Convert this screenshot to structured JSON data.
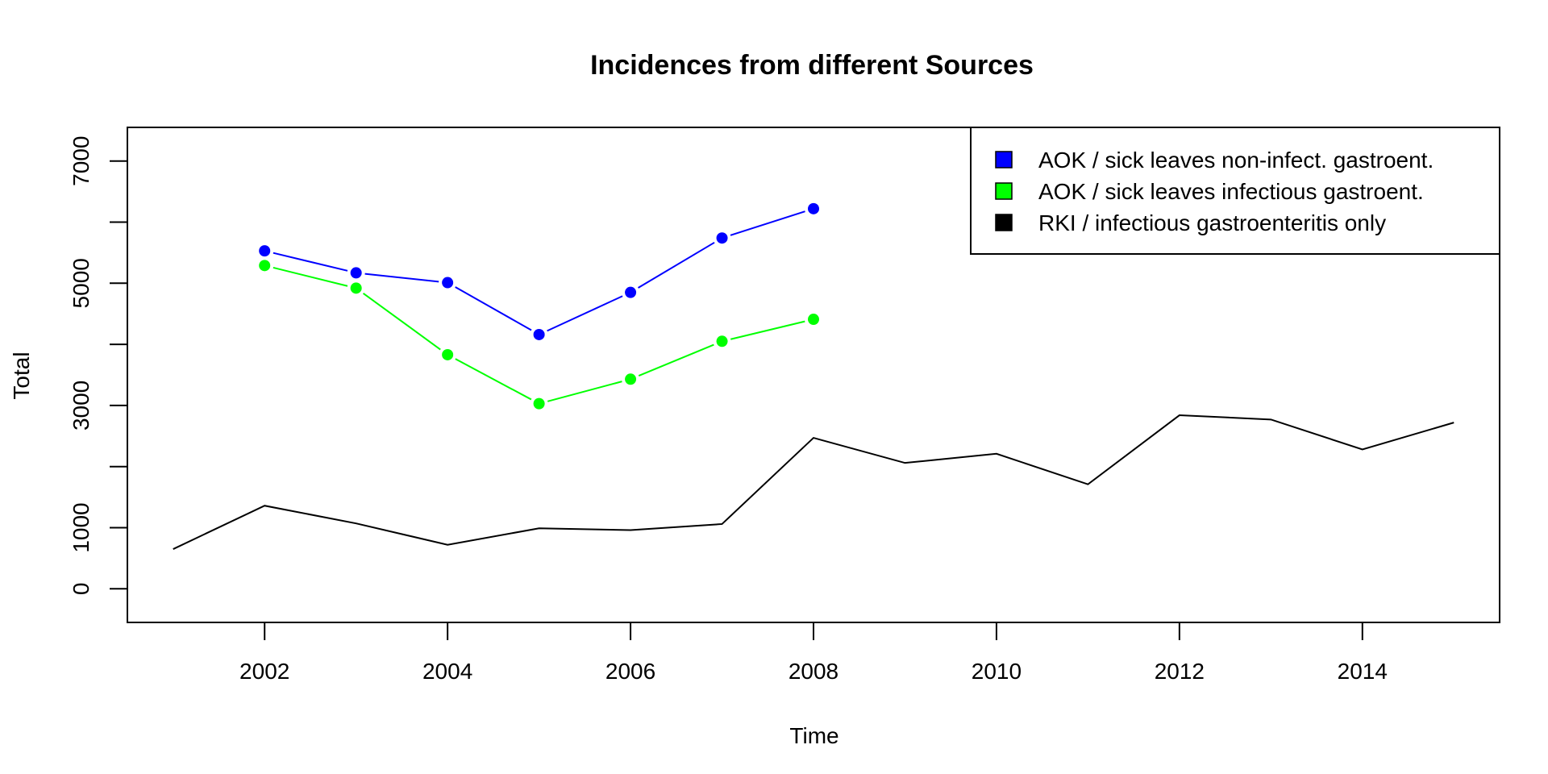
{
  "chart_data": {
    "type": "line",
    "title": "Incidences from different Sources",
    "xlabel": "Time",
    "ylabel": "Total",
    "xlim": [
      2000.5,
      2015.5
    ],
    "ylim": [
      -550,
      7550
    ],
    "x_ticks": [
      2002,
      2004,
      2006,
      2008,
      2010,
      2012,
      2014
    ],
    "x_tick_labels": [
      "2002",
      "2004",
      "2006",
      "2008",
      "2010",
      "2012",
      "2014"
    ],
    "y_ticks": [
      0,
      1000,
      2000,
      3000,
      4000,
      5000,
      6000,
      7000
    ],
    "y_tick_labels": [
      "0",
      "1000",
      "",
      "3000",
      "",
      "5000",
      "",
      "7000"
    ],
    "grid": false,
    "legend_position": "top-right",
    "series": [
      {
        "name": "AOK / sick leaves non-infect. gastroent.",
        "color": "#0000ff",
        "markers": true,
        "x": [
          2002,
          2003,
          2004,
          2005,
          2006,
          2007,
          2008
        ],
        "values": [
          5530,
          5170,
          5010,
          4160,
          4850,
          5740,
          6220
        ]
      },
      {
        "name": "AOK / sick leaves infectious gastroent.",
        "color": "#00ff00",
        "markers": true,
        "x": [
          2002,
          2003,
          2004,
          2005,
          2006,
          2007,
          2008
        ],
        "values": [
          5290,
          4920,
          3830,
          3030,
          3430,
          4050,
          4410
        ]
      },
      {
        "name": "RKI / infectious gastroenteritis only",
        "color": "#000000",
        "markers": false,
        "x": [
          2001,
          2002,
          2003,
          2004,
          2005,
          2006,
          2007,
          2008,
          2009,
          2010,
          2011,
          2012,
          2013,
          2014,
          2015
        ],
        "values": [
          650,
          1360,
          1070,
          720,
          990,
          960,
          1060,
          2470,
          2060,
          2210,
          1710,
          2840,
          2770,
          2280,
          2720
        ]
      }
    ]
  }
}
